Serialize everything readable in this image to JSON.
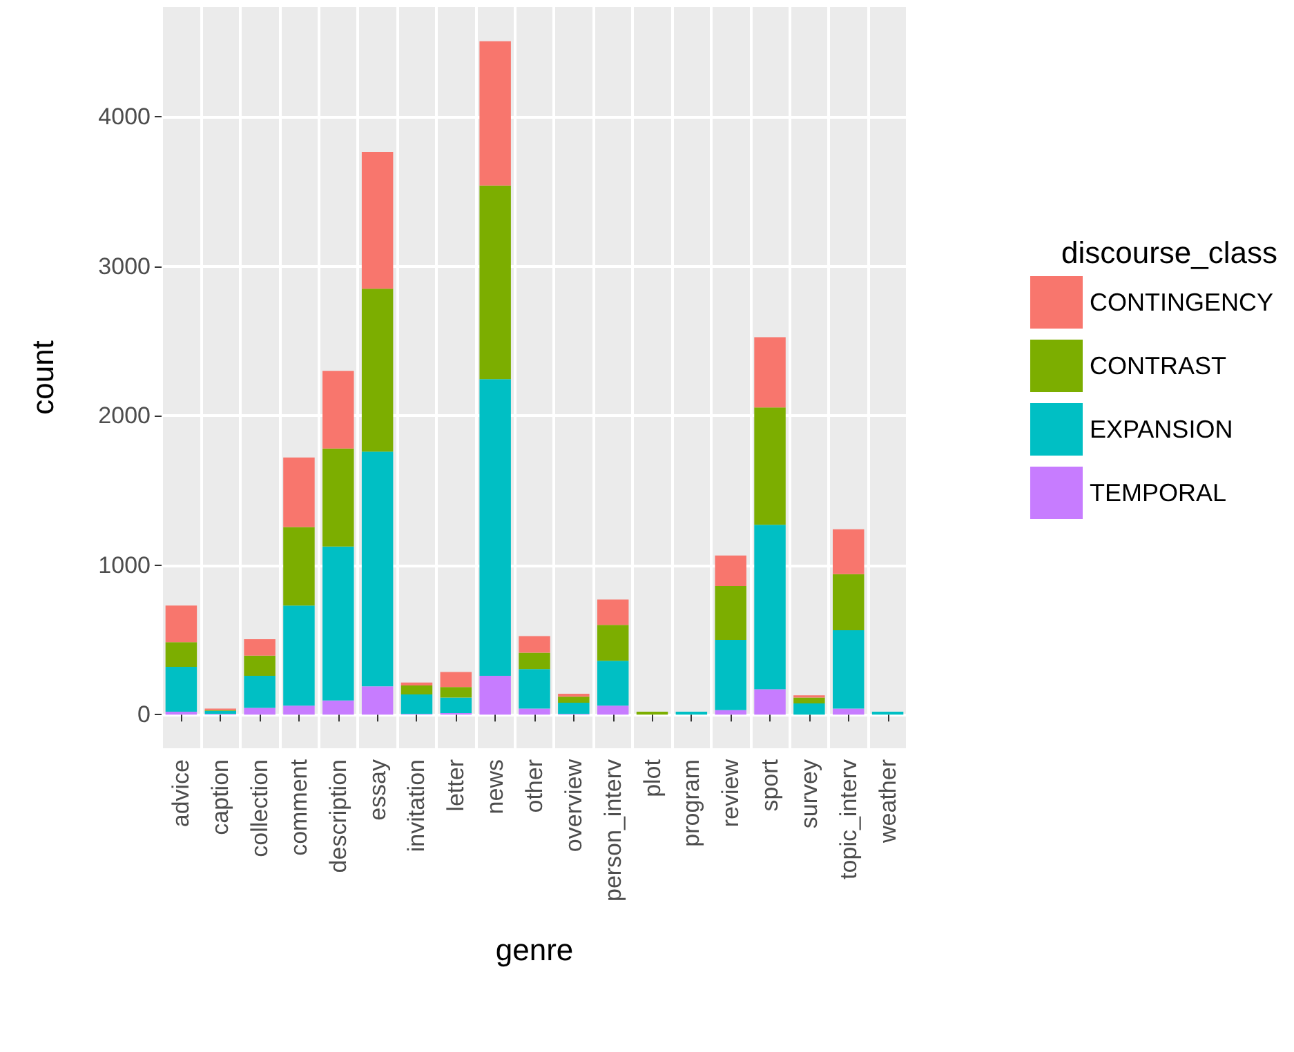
{
  "chart_data": {
    "type": "bar",
    "stacked": true,
    "xlabel": "genre",
    "ylabel": "count",
    "legend_title": "discourse_class",
    "legend": "right",
    "categories": [
      "advice",
      "caption",
      "collection",
      "comment",
      "description",
      "essay",
      "invitation",
      "letter",
      "news",
      "other",
      "overview",
      "person_interv",
      "plot",
      "program",
      "review",
      "sport",
      "survey",
      "topic_interv",
      "weather"
    ],
    "series": [
      {
        "name": "TEMPORAL",
        "color": "#c77cff",
        "values": [
          20,
          5,
          45,
          60,
          95,
          190,
          5,
          10,
          260,
          40,
          5,
          60,
          0,
          0,
          30,
          170,
          0,
          40,
          0
        ]
      },
      {
        "name": "EXPANSION",
        "color": "#00bfc4",
        "values": [
          300,
          20,
          215,
          670,
          1030,
          1570,
          130,
          105,
          1985,
          265,
          75,
          300,
          0,
          20,
          470,
          1100,
          75,
          525,
          20
        ]
      },
      {
        "name": "CONTRAST",
        "color": "#7cae00",
        "values": [
          165,
          5,
          135,
          525,
          655,
          1090,
          60,
          70,
          1295,
          110,
          40,
          240,
          20,
          0,
          360,
          785,
          40,
          375,
          0
        ]
      },
      {
        "name": "CONTINGENCY",
        "color": "#f8766d",
        "values": [
          245,
          10,
          110,
          465,
          520,
          915,
          20,
          100,
          965,
          110,
          20,
          170,
          0,
          0,
          205,
          470,
          15,
          300,
          0
        ]
      }
    ],
    "ylim": [
      -225,
      4735
    ],
    "yticks": [
      0,
      1000,
      2000,
      3000,
      4000
    ],
    "grid": true
  }
}
